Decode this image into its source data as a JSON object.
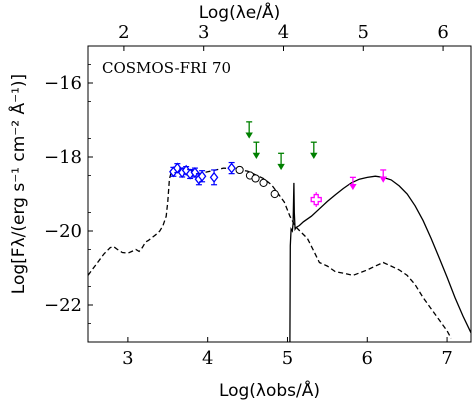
{
  "chart_data": {
    "type": "scatter",
    "annotation": "COSMOS-FRI 70",
    "xlabel": "Log(λobs/Å)",
    "ylabel": "Log[Fλ/(erg s⁻¹ cm⁻² Å⁻¹)]",
    "top_xlabel": "Log(λe/Å)",
    "xlim": [
      2.5,
      7.3
    ],
    "ylim": [
      -23,
      -15
    ],
    "x_ticks": [
      3,
      4,
      5,
      6,
      7
    ],
    "y_ticks": [
      -22,
      -20,
      -18,
      -16
    ],
    "top_ticks": [
      2,
      3,
      4,
      5,
      6
    ],
    "grid": false,
    "series": [
      {
        "kind": "dashed-line",
        "color": "#000000",
        "points": [
          [
            2.5,
            -21.2
          ],
          [
            2.55,
            -21.05
          ],
          [
            2.62,
            -20.85
          ],
          [
            2.7,
            -20.62
          ],
          [
            2.78,
            -20.45
          ],
          [
            2.82,
            -20.42
          ],
          [
            2.87,
            -20.5
          ],
          [
            2.93,
            -20.58
          ],
          [
            3.0,
            -20.6
          ],
          [
            3.05,
            -20.55
          ],
          [
            3.1,
            -20.5
          ],
          [
            3.14,
            -20.55
          ],
          [
            3.18,
            -20.45
          ],
          [
            3.22,
            -20.3
          ],
          [
            3.26,
            -20.25
          ],
          [
            3.3,
            -20.18
          ],
          [
            3.35,
            -20.1
          ],
          [
            3.4,
            -20.0
          ],
          [
            3.44,
            -19.85
          ],
          [
            3.48,
            -19.6
          ],
          [
            3.5,
            -19.2
          ],
          [
            3.52,
            -18.6
          ],
          [
            3.55,
            -18.35
          ],
          [
            3.6,
            -18.4
          ],
          [
            3.65,
            -18.3
          ],
          [
            3.72,
            -18.45
          ],
          [
            3.8,
            -18.35
          ],
          [
            3.9,
            -18.45
          ],
          [
            4.0,
            -18.4
          ],
          [
            4.1,
            -18.35
          ],
          [
            4.2,
            -18.3
          ],
          [
            4.3,
            -18.32
          ],
          [
            4.4,
            -18.35
          ],
          [
            4.5,
            -18.38
          ],
          [
            4.6,
            -18.48
          ],
          [
            4.7,
            -18.58
          ],
          [
            4.8,
            -18.75
          ],
          [
            4.88,
            -18.98
          ],
          [
            4.96,
            -19.22
          ],
          [
            5.03,
            -19.6
          ],
          [
            5.1,
            -19.88
          ],
          [
            5.18,
            -20.05
          ],
          [
            5.25,
            -20.2
          ],
          [
            5.32,
            -20.5
          ],
          [
            5.4,
            -20.85
          ],
          [
            5.5,
            -20.95
          ],
          [
            5.6,
            -21.1
          ],
          [
            5.72,
            -21.15
          ],
          [
            5.82,
            -21.2
          ],
          [
            5.92,
            -21.12
          ],
          [
            6.0,
            -21.05
          ],
          [
            6.1,
            -20.95
          ],
          [
            6.2,
            -20.85
          ],
          [
            6.3,
            -20.95
          ],
          [
            6.4,
            -21.05
          ],
          [
            6.5,
            -21.2
          ],
          [
            6.6,
            -21.45
          ],
          [
            6.7,
            -21.8
          ],
          [
            6.8,
            -22.1
          ],
          [
            6.9,
            -22.4
          ],
          [
            7.0,
            -22.7
          ],
          [
            7.05,
            -22.9
          ]
        ]
      },
      {
        "kind": "solid-line",
        "color": "#000000",
        "points": [
          [
            5.03,
            -23.0
          ],
          [
            5.035,
            -20.4
          ],
          [
            5.045,
            -19.95
          ],
          [
            5.06,
            -20.0
          ],
          [
            5.07,
            -19.8
          ],
          [
            5.08,
            -18.7
          ],
          [
            5.085,
            -19.5
          ],
          [
            5.095,
            -19.95
          ],
          [
            5.11,
            -19.9
          ],
          [
            5.15,
            -19.85
          ],
          [
            5.2,
            -19.75
          ],
          [
            5.3,
            -19.6
          ],
          [
            5.4,
            -19.4
          ],
          [
            5.5,
            -19.2
          ],
          [
            5.6,
            -19.02
          ],
          [
            5.7,
            -18.85
          ],
          [
            5.8,
            -18.7
          ],
          [
            5.9,
            -18.6
          ],
          [
            6.0,
            -18.55
          ],
          [
            6.1,
            -18.52
          ],
          [
            6.2,
            -18.55
          ],
          [
            6.3,
            -18.62
          ],
          [
            6.4,
            -18.78
          ],
          [
            6.5,
            -19.0
          ],
          [
            6.6,
            -19.32
          ],
          [
            6.7,
            -19.72
          ],
          [
            6.8,
            -20.2
          ],
          [
            6.9,
            -20.72
          ],
          [
            7.0,
            -21.25
          ],
          [
            7.1,
            -21.8
          ],
          [
            7.2,
            -22.3
          ],
          [
            7.3,
            -22.75
          ]
        ]
      },
      {
        "kind": "blue-diamonds",
        "color": "#0000ff",
        "points": [
          [
            3.57,
            -18.4
          ],
          [
            3.62,
            -18.3
          ],
          [
            3.68,
            -18.42
          ],
          [
            3.73,
            -18.36
          ],
          [
            3.78,
            -18.46
          ],
          [
            3.84,
            -18.42
          ],
          [
            3.89,
            -18.6
          ],
          [
            3.93,
            -18.52
          ],
          [
            4.08,
            -18.55
          ],
          [
            4.3,
            -18.3
          ]
        ],
        "errors": [
          0.12,
          0.12,
          0.12,
          0.1,
          0.12,
          0.12,
          0.15,
          0.15,
          0.2,
          0.15
        ]
      },
      {
        "kind": "open-circles",
        "color": "#000000",
        "points": [
          [
            4.4,
            -18.35
          ],
          [
            4.53,
            -18.5
          ],
          [
            4.6,
            -18.58
          ],
          [
            4.7,
            -18.7
          ],
          [
            4.84,
            -19.0
          ]
        ]
      },
      {
        "kind": "green-upper-limits",
        "color": "#008000",
        "points": [
          [
            4.52,
            -17.05
          ],
          [
            4.61,
            -17.6
          ],
          [
            4.92,
            -17.9
          ],
          [
            5.33,
            -17.6
          ]
        ]
      },
      {
        "kind": "magenta-cross",
        "color": "#ff00ff",
        "points": [
          [
            5.36,
            -19.15
          ]
        ],
        "errors": [
          0.2
        ]
      },
      {
        "kind": "magenta-upper-limits",
        "color": "#ff00ff",
        "points": [
          [
            5.82,
            -18.55
          ],
          [
            6.2,
            -18.35
          ]
        ]
      }
    ]
  }
}
